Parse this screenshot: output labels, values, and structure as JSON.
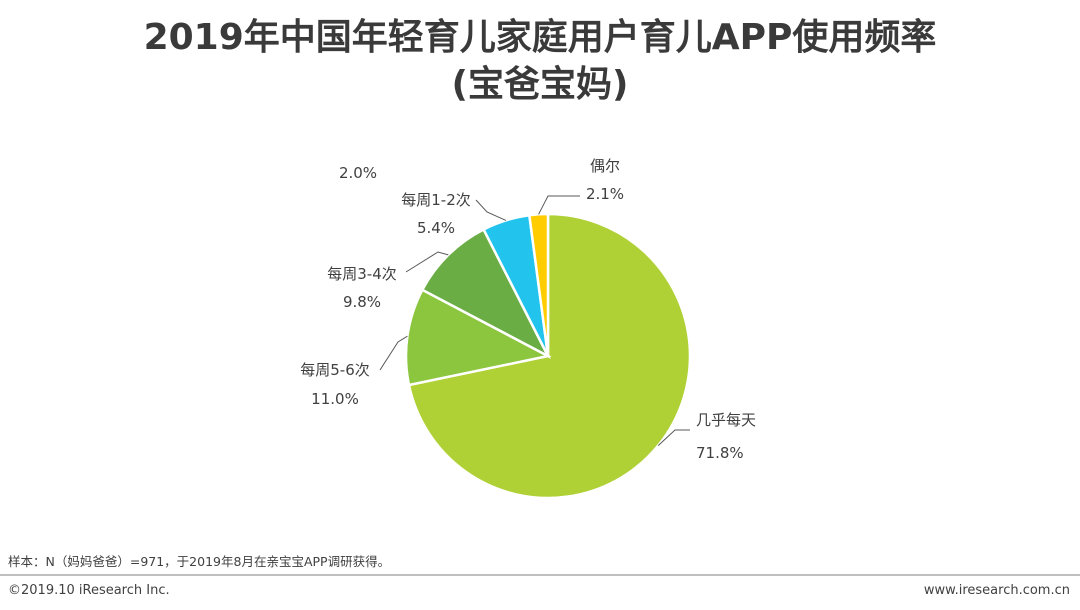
{
  "title_line1": "2019年中国年轻育儿家庭用户育儿APP使用频率",
  "title_line2": "(宝爸宝妈)",
  "chart_data": {
    "type": "pie",
    "slices": [
      {
        "label": "几乎每天",
        "value": 71.8,
        "display": "71.8%",
        "color": "#afd136"
      },
      {
        "label": "每周5-6次",
        "value": 11.0,
        "display": "11.0%",
        "color": "#8cc63f"
      },
      {
        "label": "每周3-4次",
        "value": 9.8,
        "display": "9.8%",
        "color": "#6aad45"
      },
      {
        "label": "每周1-2次",
        "value": 5.4,
        "display": "5.4%",
        "color": "#22c4ee"
      },
      {
        "label": "偶尔",
        "value": 2.1,
        "display": "2.1%",
        "color": "#ffcc00"
      }
    ],
    "unlabeled_value": "2.0%"
  },
  "footer": {
    "note": "样本：N（妈妈爸爸）=971，于2019年8月在亲宝宝APP调研获得。",
    "copyright": "©2019.10 iResearch Inc.",
    "website": "www.iresearch.com.cn"
  }
}
